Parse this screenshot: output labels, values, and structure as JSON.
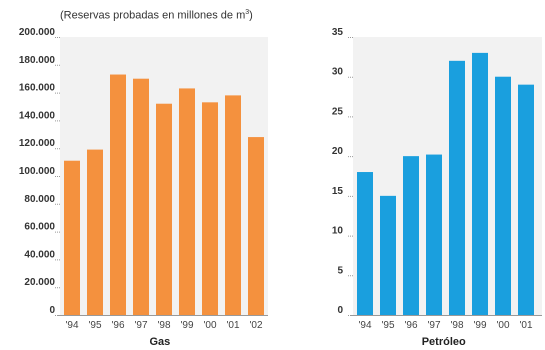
{
  "subtitle": {
    "prefix": "(Reservas probadas en millones de m",
    "sup": "3",
    "suffix": ")"
  },
  "chart_data": [
    {
      "type": "bar",
      "title": "",
      "xlabel": "Gas",
      "ylabel": "",
      "categories": [
        "'94",
        "'95",
        "'96",
        "'97",
        "'98",
        "'99",
        "'00",
        "'01",
        "'02"
      ],
      "values": [
        111000,
        119000,
        173000,
        170000,
        152000,
        163000,
        153000,
        158000,
        128000
      ],
      "ylim": [
        0,
        200000
      ],
      "yticks": [
        0,
        20000,
        40000,
        60000,
        80000,
        100000,
        120000,
        140000,
        160000,
        180000,
        200000
      ],
      "ytick_labels": [
        "0",
        "20.000",
        "40.000",
        "60.000",
        "80.000",
        "100.000",
        "120.000",
        "140.000",
        "160.000",
        "180.000",
        "200.000"
      ],
      "color": "#F4913E",
      "grid": false
    },
    {
      "type": "bar",
      "title": "",
      "xlabel": "Petróleo",
      "ylabel": "",
      "categories": [
        "'94",
        "'95",
        "'96",
        "'97",
        "'98",
        "'99",
        "'00",
        "'01"
      ],
      "values": [
        18,
        15,
        20,
        20.2,
        32,
        33,
        30,
        29
      ],
      "ylim": [
        0,
        35
      ],
      "yticks": [
        0,
        5,
        10,
        15,
        20,
        25,
        30,
        35
      ],
      "ytick_labels": [
        "0",
        "5",
        "10",
        "15",
        "20",
        "25",
        "30",
        "35"
      ],
      "color": "#1A9FDE",
      "grid": false
    }
  ]
}
